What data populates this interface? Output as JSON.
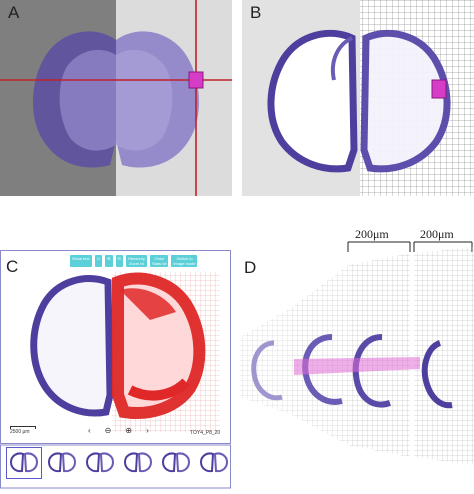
{
  "panels": {
    "a": {
      "label": "A"
    },
    "b": {
      "label": "B"
    },
    "c": {
      "label": "C",
      "toolbar": [
        "Show text",
        "☐",
        "⊞",
        "⊟",
        "Hierarchy\nZoom lvl",
        "Ontol\nStats txt",
        "Switch to\nimage mode"
      ],
      "scale_label": "2500 μm",
      "slice_id": "TOY4_P8_20",
      "nav": {
        "prev": "‹",
        "zoom_out": "⊖",
        "zoom_in": "⊕",
        "next": "›"
      },
      "thumbnail_count": 6
    },
    "d": {
      "label": "D",
      "scale_1": "200μm",
      "scale_2": "200μm"
    }
  },
  "colors": {
    "tissue": "#6a5bb5",
    "tissue_light": "#b7aedb",
    "crosshair": "#c0202a",
    "roi": "#d63cc6",
    "heatmap": "#e02828",
    "toolbar_button": "#5bd0d8",
    "frame": "#8a8acb"
  }
}
